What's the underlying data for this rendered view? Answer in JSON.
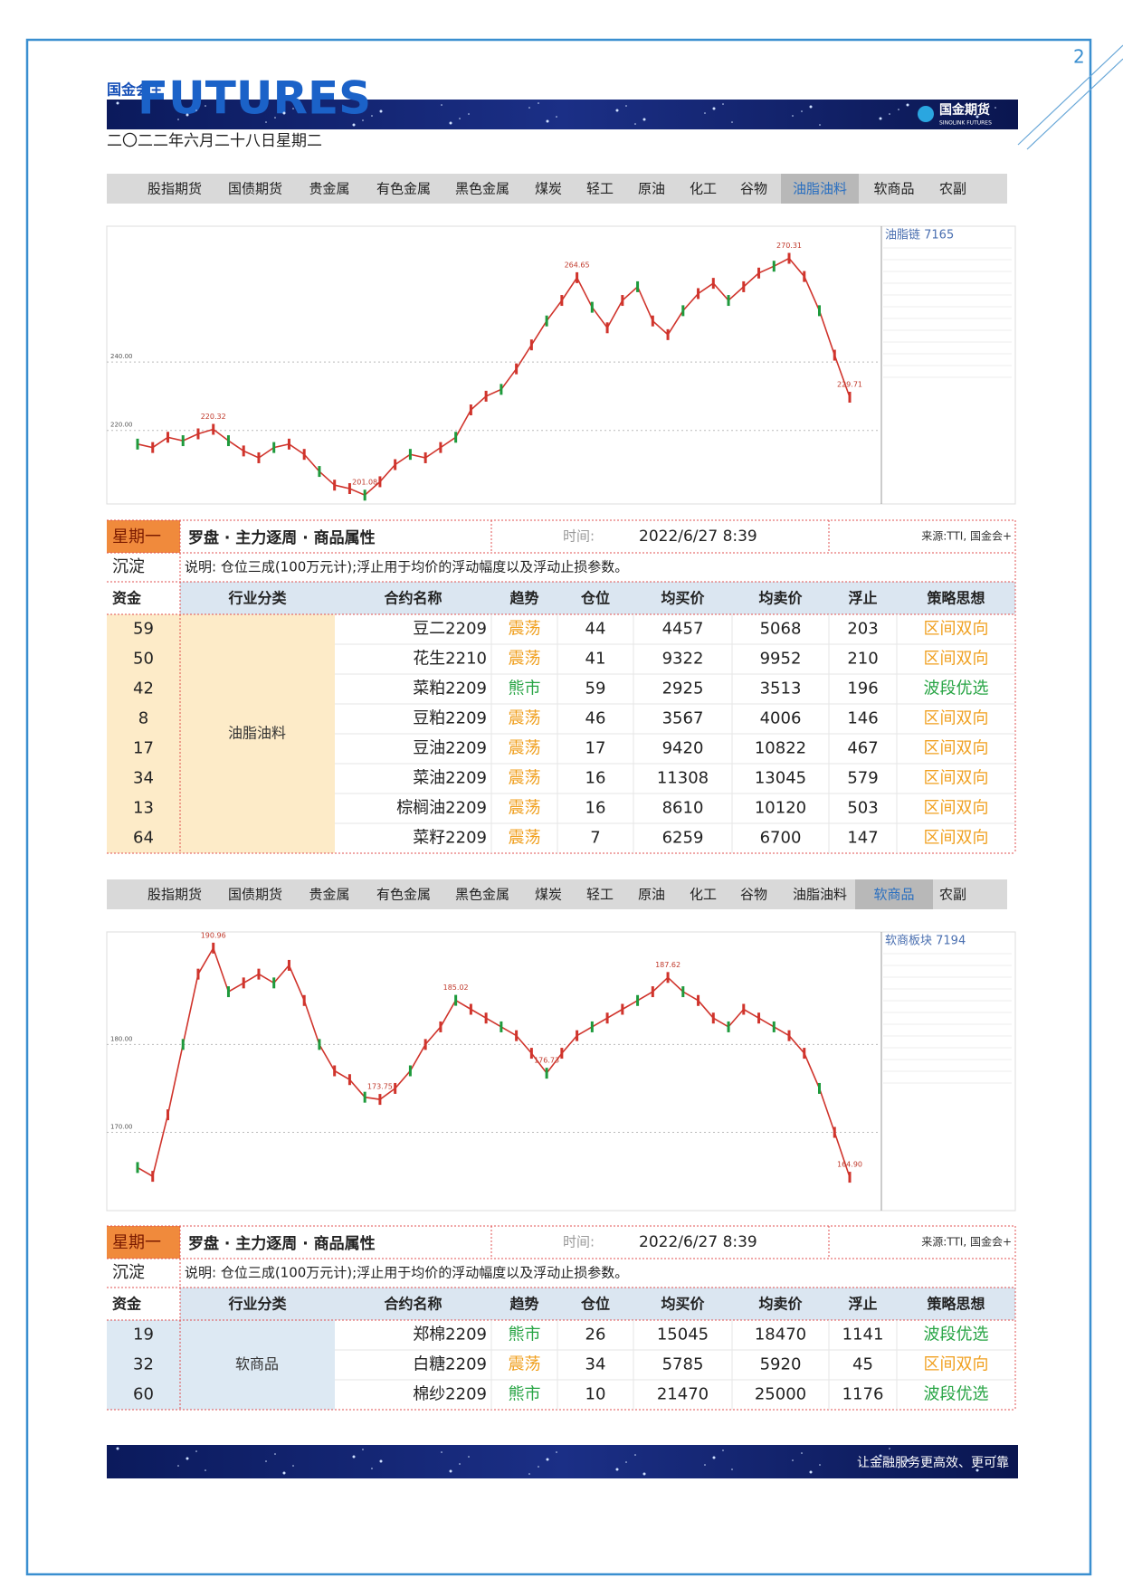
{
  "header": {
    "logo": "国金会+",
    "brand": "FUTURES",
    "date": "二〇二二年六月二十八日星期二",
    "company": "国金期货",
    "company_en": "SINOLINK FUTURES",
    "page": "2"
  },
  "navs": [
    {
      "tabs": [
        "股指期货",
        "国债期货",
        "贵金属",
        "有色金属",
        "黑色金属",
        "煤炭",
        "轻工",
        "原油",
        "化工",
        "谷物",
        "油脂油料",
        "软商品",
        "农副"
      ],
      "active_tab": "油脂油料"
    },
    {
      "tabs": [
        "股指期货",
        "国债期货",
        "贵金属",
        "有色金属",
        "黑色金属",
        "煤炭",
        "轻工",
        "原油",
        "化工",
        "谷物",
        "油脂油料",
        "软商品",
        "农副"
      ],
      "active_tab": "软商品"
    }
  ],
  "chart_data": [
    {
      "type": "line",
      "title": "油脂链 7165",
      "color": "#d0342c",
      "ylim": [
        198.5,
        279.7
      ],
      "yticks": [
        {
          "value": 240,
          "label": "240.00"
        },
        {
          "value": 220,
          "label": "220.00"
        }
      ],
      "grid": true,
      "values": [
        216,
        215,
        218,
        217,
        219,
        220.32,
        217,
        214,
        212,
        215,
        216,
        213,
        208,
        204,
        203,
        201.08,
        205,
        210,
        213,
        212,
        215,
        218,
        226,
        230,
        232,
        238,
        245,
        252,
        258,
        264.65,
        256,
        250,
        258,
        262,
        252,
        248,
        255,
        260,
        263,
        258,
        262,
        266,
        268,
        270.31,
        265,
        255,
        242,
        229.71
      ],
      "value_labels": [
        null,
        null,
        null,
        null,
        null,
        "220.32",
        null,
        null,
        null,
        null,
        null,
        null,
        null,
        null,
        null,
        "201.08",
        null,
        null,
        null,
        null,
        null,
        null,
        null,
        null,
        null,
        null,
        null,
        null,
        null,
        "264.65",
        null,
        null,
        null,
        null,
        null,
        null,
        null,
        null,
        null,
        null,
        null,
        null,
        null,
        "270.31",
        null,
        null,
        null,
        "229.71"
      ]
    },
    {
      "type": "line",
      "title": "软商板块 7194",
      "color": "#d0342c",
      "ylim": [
        161.1,
        192.8
      ],
      "yticks": [
        {
          "value": 180,
          "label": "180.00"
        },
        {
          "value": 170,
          "label": "170.00"
        }
      ],
      "grid": true,
      "values": [
        166,
        165,
        172,
        180,
        188,
        190.96,
        186,
        187,
        188,
        187,
        189,
        185,
        180,
        177,
        176,
        174,
        173.75,
        175,
        177,
        180,
        182,
        185.02,
        184,
        183,
        182,
        181,
        179,
        176.73,
        179,
        181,
        182,
        183,
        184,
        185,
        186,
        187.62,
        186,
        185,
        183,
        182,
        184,
        183,
        182,
        181,
        179,
        175,
        170,
        164.9
      ],
      "value_labels": [
        null,
        null,
        null,
        null,
        null,
        "190.96",
        null,
        null,
        null,
        null,
        null,
        null,
        null,
        null,
        null,
        null,
        "173.75",
        null,
        null,
        null,
        null,
        "185.02",
        null,
        null,
        null,
        null,
        null,
        "176.73",
        null,
        null,
        null,
        null,
        null,
        null,
        null,
        "187.62",
        null,
        null,
        null,
        null,
        null,
        null,
        null,
        null,
        null,
        null,
        null,
        "164.90"
      ]
    }
  ],
  "tables": [
    {
      "day": "星期一",
      "title": "罗盘 · 主力逐周 · 商品属性",
      "time_label": "时间:",
      "time": "2022/6/27 8:39",
      "source": "来源:TTI, 国金会+",
      "row2_label": "沉淀",
      "note": "说明: 仓位三成(100万元计);浮止用于均价的浮动幅度以及浮动止损参数。",
      "tone": "#fdebc8",
      "columns": [
        "资金",
        "行业分类",
        "合约名称",
        "趋势",
        "仓位",
        "均买价",
        "均卖价",
        "浮止",
        "策略思想"
      ],
      "category": "油脂油料",
      "rows": [
        [
          59,
          "豆二2209",
          "震荡",
          44,
          4457,
          5068,
          203,
          "区间双向"
        ],
        [
          50,
          "花生2210",
          "震荡",
          41,
          9322,
          9952,
          210,
          "区间双向"
        ],
        [
          42,
          "菜粕2209",
          "熊市",
          59,
          2925,
          3513,
          196,
          "波段优选"
        ],
        [
          8,
          "豆粕2209",
          "震荡",
          46,
          3567,
          4006,
          146,
          "区间双向"
        ],
        [
          17,
          "豆油2209",
          "震荡",
          17,
          9420,
          10822,
          467,
          "区间双向"
        ],
        [
          34,
          "菜油2209",
          "震荡",
          16,
          11308,
          13045,
          579,
          "区间双向"
        ],
        [
          13,
          "棕榈油2209",
          "震荡",
          16,
          8610,
          10120,
          503,
          "区间双向"
        ],
        [
          64,
          "菜籽2209",
          "震荡",
          7,
          6259,
          6700,
          147,
          "区间双向"
        ]
      ]
    },
    {
      "day": "星期一",
      "title": "罗盘 · 主力逐周 · 商品属性",
      "time_label": "时间:",
      "time": "2022/6/27 8:39",
      "source": "来源:TTI, 国金会+",
      "row2_label": "沉淀",
      "note": "说明: 仓位三成(100万元计);浮止用于均价的浮动幅度以及浮动止损参数。",
      "tone": "#dde9f3",
      "columns": [
        "资金",
        "行业分类",
        "合约名称",
        "趋势",
        "仓位",
        "均买价",
        "均卖价",
        "浮止",
        "策略思想"
      ],
      "category": "软商品",
      "rows": [
        [
          19,
          "郑棉2209",
          "熊市",
          26,
          15045,
          18470,
          1141,
          "波段优选"
        ],
        [
          32,
          "白糖2209",
          "震荡",
          34,
          5785,
          5920,
          45,
          "区间双向"
        ],
        [
          60,
          "棉纱2209",
          "熊市",
          10,
          21470,
          25000,
          1176,
          "波段优选"
        ]
      ]
    }
  ],
  "footer": {
    "slogan": "让金融服务更高效、更可靠"
  }
}
